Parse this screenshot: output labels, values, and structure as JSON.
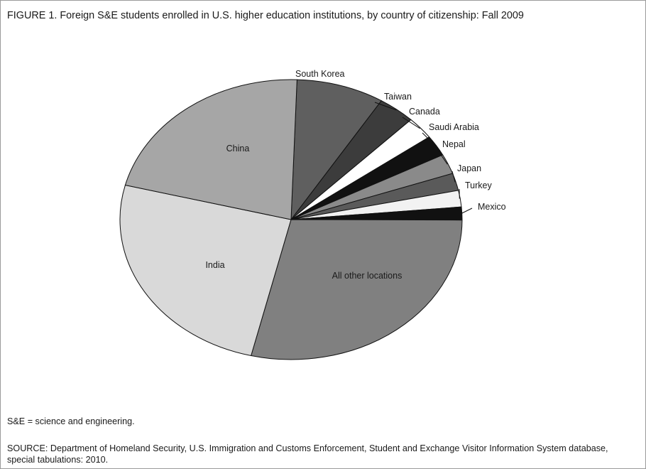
{
  "figure_title": "FIGURE 1.  Foreign S&E students enrolled in U.S. higher education institutions, by country of citizenship: Fall 2009",
  "note": "S&E = science and engineering.",
  "source": "SOURCE:  Department of Homeland Security, U.S. Immigration and Customs Enforcement, Student and Exchange Visitor Information System database, special tabulations: 2010.",
  "chart_data": {
    "type": "pie",
    "title": "FIGURE 1.  Foreign S&E students enrolled in U.S. higher education institutions, by country of citizenship: Fall 2009",
    "unit": "percent of foreign S&E students (approximate, read from slice angles)",
    "slices": [
      {
        "label": "South Korea",
        "value": 8.3,
        "color": "#5f5f5f"
      },
      {
        "label": "Taiwan",
        "value": 3.5,
        "color": "#3c3c3c"
      },
      {
        "label": "Canada",
        "value": 2.6,
        "color": "#ffffff"
      },
      {
        "label": "Saudi Arabia",
        "value": 2.4,
        "color": "#111111"
      },
      {
        "label": "Nepal",
        "value": 2.3,
        "color": "#8a8a8a"
      },
      {
        "label": "Japan",
        "value": 2.0,
        "color": "#5a5a5a"
      },
      {
        "label": "Turkey",
        "value": 1.9,
        "color": "#f2f2f2"
      },
      {
        "label": "Mexico",
        "value": 1.5,
        "color": "#111111"
      },
      {
        "label": "All other locations",
        "value": 28.7,
        "color": "#808080"
      },
      {
        "label": "India",
        "value": 25.2,
        "color": "#d9d9d9"
      },
      {
        "label": "China",
        "value": 21.6,
        "color": "#a6a6a6"
      }
    ]
  }
}
